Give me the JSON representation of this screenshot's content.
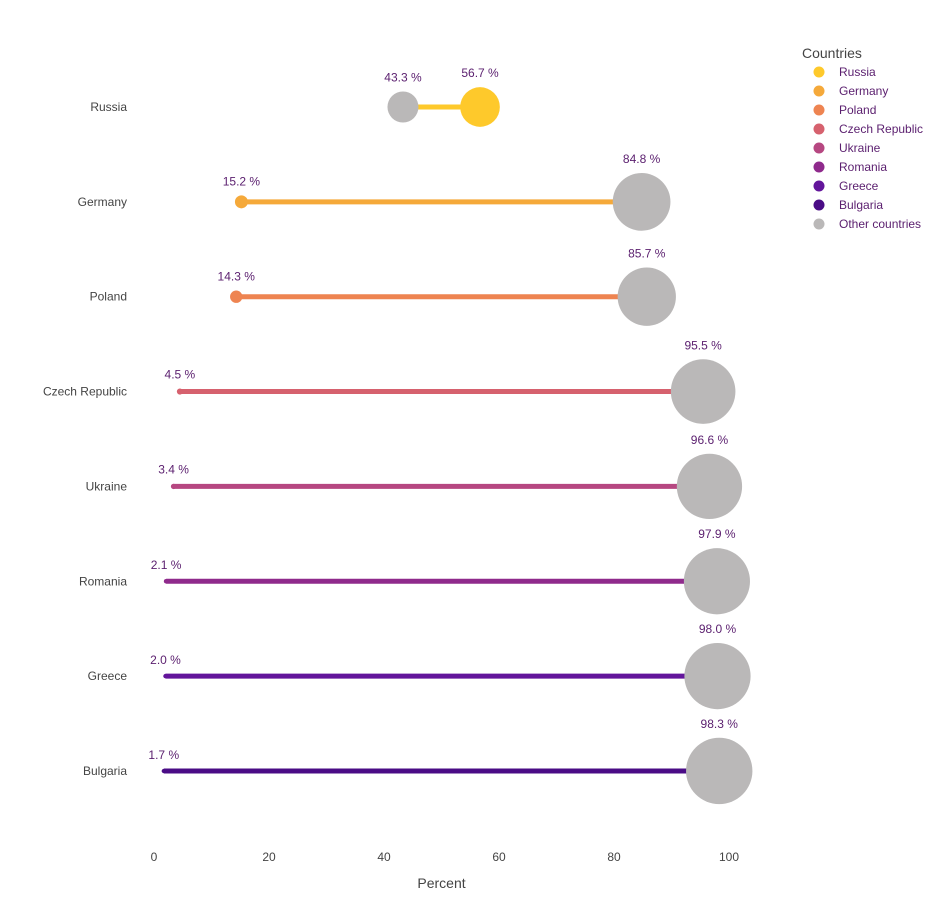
{
  "chart_data": {
    "type": "scatter",
    "xlabel": "Percent",
    "x_ticks": [
      0,
      20,
      40,
      60,
      80,
      100
    ],
    "xlim": [
      0,
      100
    ],
    "value_suffix": " %",
    "legend": {
      "title": "Countries",
      "position": "top-right",
      "entries": [
        {
          "name": "Russia",
          "color": "#fec92b"
        },
        {
          "name": "Germany",
          "color": "#f5a93a"
        },
        {
          "name": "Poland",
          "color": "#ee8451"
        },
        {
          "name": "Czech Republic",
          "color": "#d6616e"
        },
        {
          "name": "Ukraine",
          "color": "#b64781"
        },
        {
          "name": "Romania",
          "color": "#8f2a8c"
        },
        {
          "name": "Greece",
          "color": "#63159b"
        },
        {
          "name": "Bulgaria",
          "color": "#4a0c86"
        },
        {
          "name": "Other countries",
          "color": "#bab8b8"
        }
      ]
    },
    "other_color": "#bab8b8",
    "rows": [
      {
        "country": "Russia",
        "value": 56.7,
        "other": 43.3,
        "color": "#fec92b"
      },
      {
        "country": "Germany",
        "value": 15.2,
        "other": 84.8,
        "color": "#f5a93a"
      },
      {
        "country": "Poland",
        "value": 14.3,
        "other": 85.7,
        "color": "#ee8451"
      },
      {
        "country": "Czech Republic",
        "value": 4.5,
        "other": 95.5,
        "color": "#d6616e"
      },
      {
        "country": "Ukraine",
        "value": 3.4,
        "other": 96.6,
        "color": "#b64781"
      },
      {
        "country": "Romania",
        "value": 2.1,
        "other": 97.9,
        "color": "#8f2a8c"
      },
      {
        "country": "Greece",
        "value": 2.0,
        "other": 98.0,
        "color": "#63159b"
      },
      {
        "country": "Bulgaria",
        "value": 1.7,
        "other": 98.3,
        "color": "#4a0c86"
      }
    ]
  }
}
